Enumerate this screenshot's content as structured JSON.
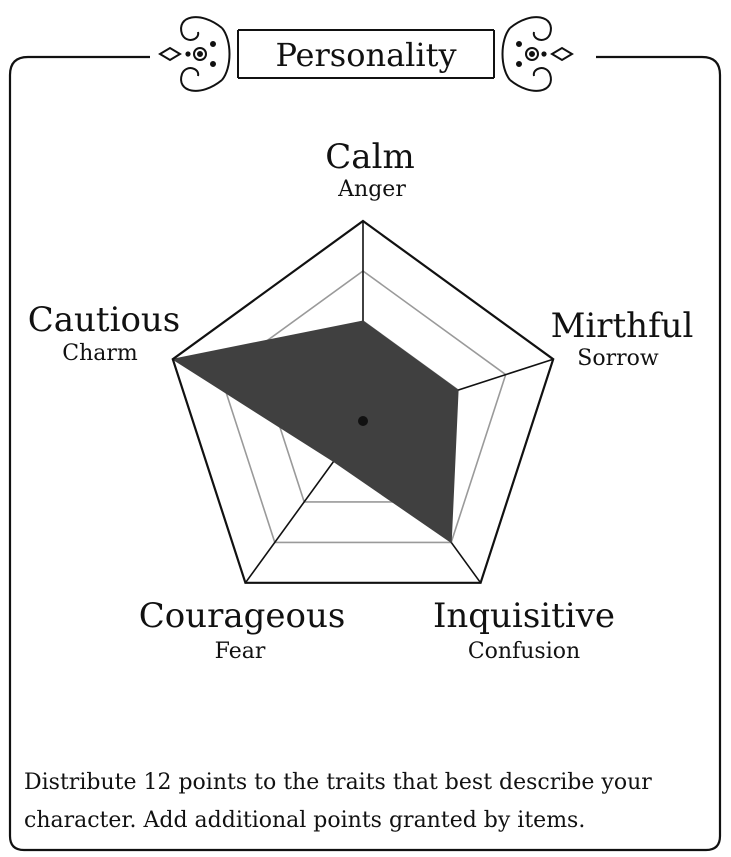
{
  "title": "Personality",
  "footer_text": "Distribute 12 points to the traits that best describe your character. Add additional points granted by items.",
  "colors": {
    "ink": "#111111",
    "fill": "#404040",
    "grid": "#9a9a9a"
  },
  "chart_data": {
    "type": "radar",
    "levels": 4,
    "max": 4,
    "axes": [
      {
        "name": "Calm",
        "opposite": "Anger"
      },
      {
        "name": "Mirthful",
        "opposite": "Sorrow"
      },
      {
        "name": "Inquisitive",
        "opposite": "Confusion"
      },
      {
        "name": "Courageous",
        "opposite": "Fear"
      },
      {
        "name": "Cautious",
        "opposite": "Charm"
      }
    ],
    "values": [
      2,
      2,
      3,
      1,
      4
    ]
  }
}
